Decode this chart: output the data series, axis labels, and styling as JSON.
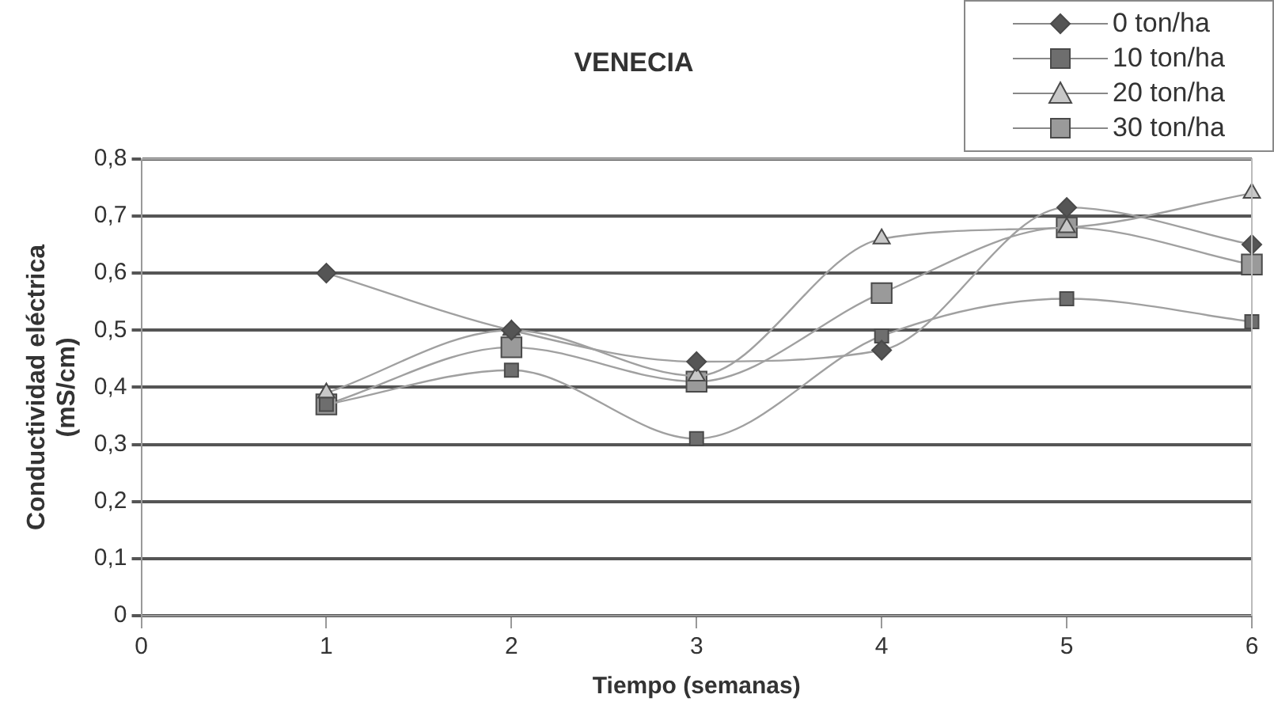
{
  "chart_data": {
    "type": "line",
    "title": "VENECIA",
    "xlabel": "Tiempo (semanas)",
    "ylabel": "Conductividad eléctrica\n(mS/cm)",
    "x": [
      1,
      2,
      3,
      4,
      5,
      6
    ],
    "series": [
      {
        "name": "0 ton/ha",
        "color": "#555555",
        "marker": "diamond",
        "values": [
          0.6,
          0.5,
          0.445,
          0.465,
          0.715,
          0.65
        ]
      },
      {
        "name": "10 ton/ha",
        "color": "#6e6e6e",
        "marker": "square",
        "values": [
          0.37,
          0.43,
          0.31,
          0.49,
          0.555,
          0.515
        ]
      },
      {
        "name": "20 ton/ha",
        "color": "#c8c8c8",
        "marker": "triangle",
        "values": [
          0.39,
          0.5,
          0.42,
          0.66,
          0.68,
          0.74
        ]
      },
      {
        "name": "30 ton/ha",
        "color": "#9a9a9a",
        "marker": "square",
        "values": [
          0.37,
          0.47,
          0.41,
          0.565,
          0.68,
          0.615
        ]
      }
    ],
    "xlim": [
      0,
      6
    ],
    "xticks": [
      0,
      1,
      2,
      3,
      4,
      5,
      6
    ],
    "ylim": [
      0,
      0.8
    ],
    "yticks": [
      {
        "value": 0,
        "label": "0"
      },
      {
        "value": 0.1,
        "label": "0,1"
      },
      {
        "value": 0.2,
        "label": "0,2"
      },
      {
        "value": 0.3,
        "label": "0,3"
      },
      {
        "value": 0.4,
        "label": "0,4"
      },
      {
        "value": 0.5,
        "label": "0,5"
      },
      {
        "value": 0.6,
        "label": "0,6"
      },
      {
        "value": 0.7,
        "label": "0,7"
      },
      {
        "value": 0.8,
        "label": "0,8"
      }
    ],
    "grid": "y",
    "legend": "top right",
    "line_style": "solid"
  }
}
